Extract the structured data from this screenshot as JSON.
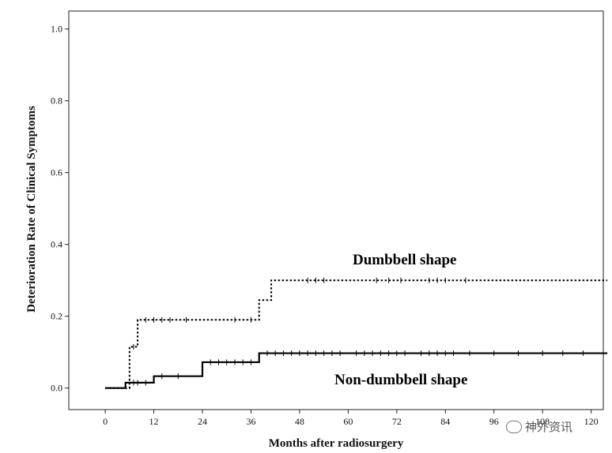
{
  "chart_data": {
    "type": "line",
    "xlabel": "Months after radiosurgery",
    "ylabel": "Deterioration Rate of Clinical Symptoms",
    "xlim": [
      -9,
      123
    ],
    "ylim": [
      -0.06,
      1.05
    ],
    "xticks": [
      0,
      12,
      24,
      36,
      48,
      60,
      72,
      84,
      96,
      108,
      120
    ],
    "yticks": [
      "0.0",
      "0.2",
      "0.4",
      "0.6",
      "0.8",
      "1.0"
    ],
    "series": [
      {
        "name": "Dumbbell shape",
        "style": "dotted",
        "steps": [
          [
            0,
            0.0
          ],
          [
            5,
            0.0
          ],
          [
            6,
            0.115
          ],
          [
            8,
            0.19
          ],
          [
            38,
            0.245
          ],
          [
            41,
            0.3
          ],
          [
            124,
            0.3
          ]
        ],
        "censors": [
          7,
          10,
          12,
          14,
          16,
          20,
          32,
          36,
          50,
          52,
          54,
          67,
          70,
          73,
          80,
          82,
          84,
          89
        ]
      },
      {
        "name": "Non-dumbbell shape",
        "style": "solid",
        "steps": [
          [
            0,
            0.0
          ],
          [
            5,
            0.015
          ],
          [
            12,
            0.033
          ],
          [
            24,
            0.072
          ],
          [
            38,
            0.097
          ],
          [
            124,
            0.097
          ]
        ],
        "censors": [
          7,
          8,
          10,
          14,
          18,
          26,
          28,
          30,
          32,
          34,
          36,
          40,
          42,
          44,
          46,
          48,
          50,
          52,
          54,
          56,
          58,
          62,
          64,
          66,
          68,
          70,
          72,
          74,
          78,
          80,
          82,
          84,
          86,
          90,
          96,
          102,
          108,
          113,
          118
        ]
      }
    ],
    "annotations": [
      "Dumbbell shape",
      "Non-dumbbell shape"
    ]
  },
  "watermark": {
    "text": "神外资讯",
    "icon": "chat-bubble-icon"
  }
}
